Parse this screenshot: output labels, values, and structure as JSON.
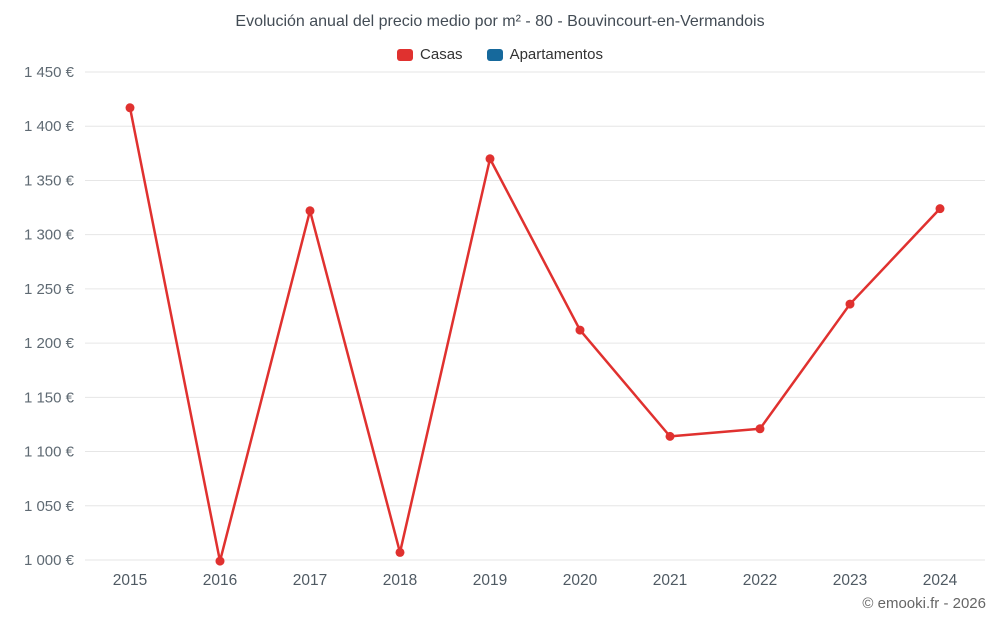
{
  "chart_data": {
    "type": "line",
    "title": "Evolución anual del precio medio por m² - 80 - Bouvincourt-en-Vermandois",
    "categories": [
      "2015",
      "2016",
      "2017",
      "2018",
      "2019",
      "2020",
      "2021",
      "2022",
      "2023",
      "2024"
    ],
    "series": [
      {
        "name": "Casas",
        "color": "#e0312f",
        "values": [
          1417,
          999,
          1322,
          1007,
          1370,
          1212,
          1114,
          1121,
          1236,
          1324
        ]
      },
      {
        "name": "Apartamentos",
        "color": "#16699c",
        "values": []
      }
    ],
    "xlabel": "",
    "ylabel": "",
    "ylim": [
      1000,
      1450
    ],
    "ytick_step": 50,
    "ytick_suffix": " €",
    "grid": "horizontal",
    "legend_position": "top"
  },
  "footer": {
    "copyright": "© emooki.fr - 2026"
  }
}
